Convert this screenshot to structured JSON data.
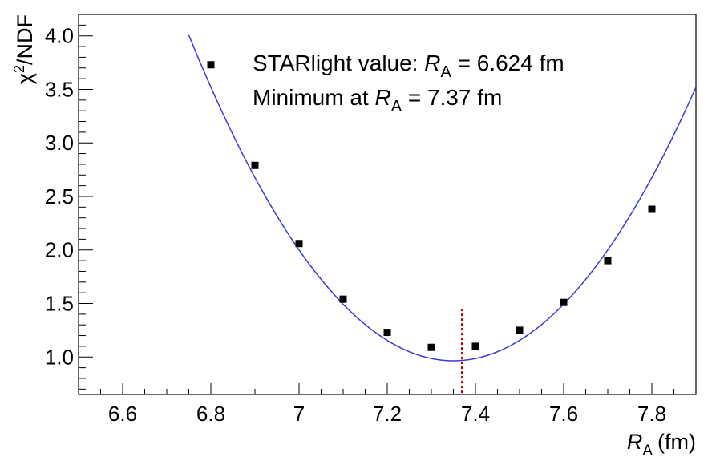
{
  "chart_data": {
    "type": "scatter",
    "xlabel": {
      "symbol": "R",
      "subscript": "A",
      "unit": "(fm)"
    },
    "ylabel": {
      "base": "χ",
      "superscript": "2",
      "rest": "/NDF"
    },
    "xlim": [
      6.5,
      7.9
    ],
    "ylim": [
      0.65,
      4.2
    ],
    "x_ticks": [
      6.6,
      6.8,
      7.0,
      7.2,
      7.4,
      7.6,
      7.8
    ],
    "x_tick_labels": [
      "6.6",
      "6.8",
      "7",
      "7.2",
      "7.4",
      "7.6",
      "7.8"
    ],
    "y_ticks": [
      1.0,
      1.5,
      2.0,
      2.5,
      3.0,
      3.5,
      4.0
    ],
    "y_tick_labels": [
      "1.0",
      "1.5",
      "2.0",
      "2.5",
      "3.0",
      "3.5",
      "4.0"
    ],
    "points": {
      "x": [
        6.8,
        6.9,
        7.0,
        7.1,
        7.2,
        7.3,
        7.4,
        7.5,
        7.6,
        7.7,
        7.8
      ],
      "y": [
        3.73,
        2.79,
        2.06,
        1.54,
        1.23,
        1.09,
        1.1,
        1.25,
        1.51,
        1.9,
        2.38
      ]
    },
    "fit_curve": {
      "type": "parabola",
      "vertex_x": 7.35,
      "vertex_y": 0.965,
      "curvature": 8.45,
      "color": "#3b3bd6"
    },
    "minimum_marker": {
      "x": 7.37,
      "y_top": 1.45,
      "color": "#c00000",
      "style": "dotted"
    },
    "annotations": [
      {
        "prefix": "STARlight value: ",
        "symbol": "R",
        "subscript": "A",
        "suffix": " = 6.624 fm"
      },
      {
        "prefix": "Minimum at ",
        "symbol": "R",
        "subscript": "A",
        "suffix": " = 7.37 fm"
      }
    ],
    "marker_color": "#000000"
  }
}
